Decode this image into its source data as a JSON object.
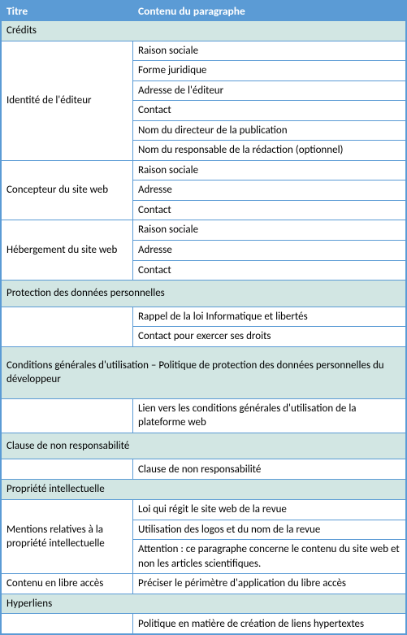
{
  "headers": {
    "title": "Titre",
    "content": "Contenu du paragraphe"
  },
  "sections": {
    "credits": {
      "heading": "Crédits",
      "rows": [
        {
          "title": "Identité de l'éditeur",
          "items": [
            "Raison sociale",
            "Forme juridique",
            "Adresse de l'éditeur",
            "Contact",
            "Nom du directeur de la publication",
            "Nom du responsable de la rédaction (optionnel)"
          ]
        },
        {
          "title": "Concepteur du site web",
          "items": [
            "Raison sociale",
            "Adresse",
            "Contact"
          ]
        },
        {
          "title": "Hébergement du site web",
          "items": [
            "Raison sociale",
            "Adresse",
            "Contact"
          ]
        }
      ]
    },
    "protection": {
      "heading": "Protection des données personnelles",
      "items": [
        "Rappel de la loi Informatique et libertés",
        "Contact pour exercer ses droits"
      ]
    },
    "conditions": {
      "heading": "Conditions générales d'utilisation – Politique de protection des données personnelles du développeur",
      "items": [
        "Lien vers les conditions générales d'utilisation de la plateforme web"
      ]
    },
    "clause": {
      "heading": "Clause de non responsabilité",
      "items": [
        "Clause de non responsabilité"
      ]
    },
    "propriete": {
      "heading": "Propriété intellectuelle",
      "rows": [
        {
          "title": "Mentions relatives à la propriété intellectuelle",
          "items": [
            "Loi qui régit le site web de la revue",
            "Utilisation des logos et du nom de la revue",
            "Attention : ce paragraphe concerne le contenu du site web et non les articles scientifiques."
          ]
        },
        {
          "title": "Contenu en libre accès",
          "items": [
            "Préciser le périmètre d'application du libre accès"
          ]
        }
      ]
    },
    "hyperliens": {
      "heading": "Hyperliens",
      "items": [
        "Politique en matière de création de liens hypertextes"
      ]
    }
  }
}
